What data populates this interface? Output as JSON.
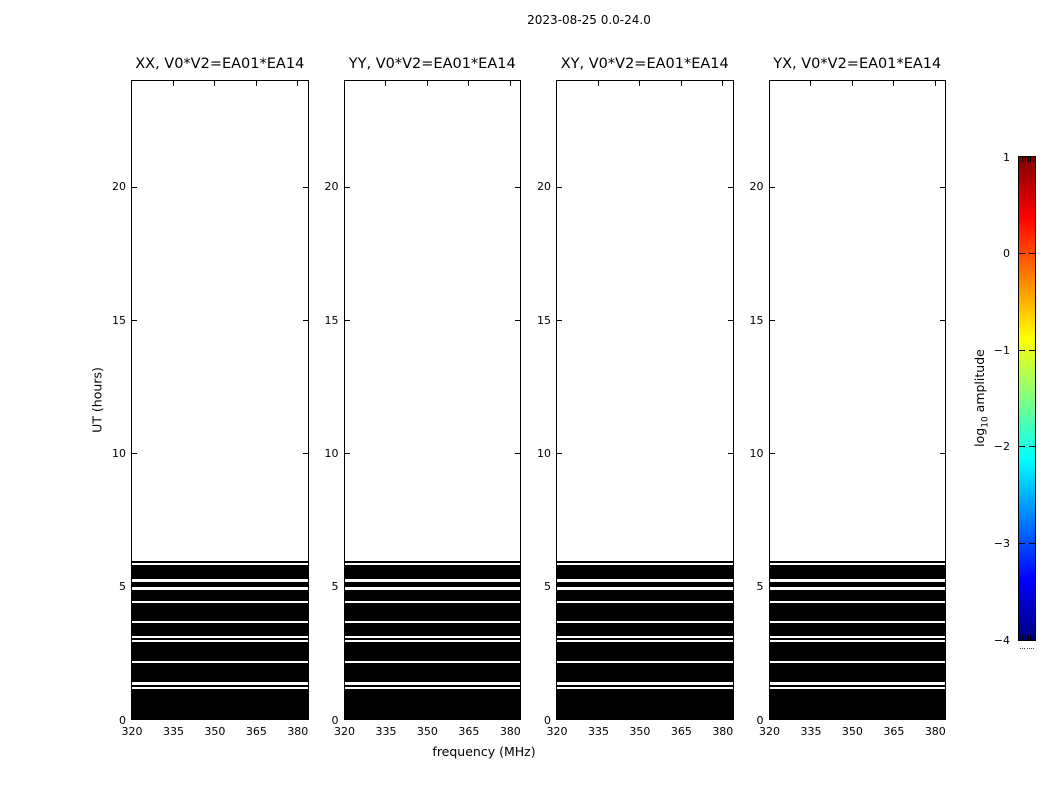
{
  "chart_data": {
    "type": "heatmap",
    "title": "2023-08-25 0.0-24.0",
    "xlabel": "frequency (MHz)",
    "ylabel": "UT (hours)",
    "panels": [
      {
        "id": "XX",
        "title": "XX, V0*V2=EA01*EA14"
      },
      {
        "id": "YY",
        "title": "YY, V0*V2=EA01*EA14"
      },
      {
        "id": "XY",
        "title": "XY, V0*V2=EA01*EA14"
      },
      {
        "id": "YX",
        "title": "YX, V0*V2=EA01*EA14"
      }
    ],
    "x_ticks": [
      320,
      335,
      350,
      365,
      380
    ],
    "x_range_mhz": [
      320,
      383.5
    ],
    "y_ticks": [
      0,
      5,
      10,
      15,
      20
    ],
    "y_range_hours": [
      0,
      24
    ],
    "data_note": "all four polarization panels show identical below-scale (black) amplitude from UT 0 to ~5.95 h; white horizontal rows are gaps; no data above ~6 h",
    "black_intervals_ut_hours": [
      [
        0.0,
        1.11
      ],
      [
        1.2,
        1.29
      ],
      [
        1.39,
        2.1
      ],
      [
        2.19,
        2.91
      ],
      [
        2.98,
        3.06
      ],
      [
        3.13,
        3.6
      ],
      [
        3.69,
        4.35
      ],
      [
        4.44,
        4.86
      ],
      [
        4.95,
        5.16
      ],
      [
        5.25,
        5.8
      ],
      [
        5.88,
        5.95
      ]
    ],
    "colorbar": {
      "label": "log10 amplitude",
      "label_parts": {
        "base": "log",
        "sub": "10",
        "rest": " amplitude"
      },
      "ticks": [
        1,
        0,
        -1,
        -2,
        -3,
        -4
      ],
      "range": [
        -4,
        1
      ],
      "colormap": "jet",
      "colormap_stops": [
        "#00007f",
        "#0000ff",
        "#00ffff",
        "#ffff00",
        "#ff0000",
        "#7f0000"
      ]
    }
  }
}
